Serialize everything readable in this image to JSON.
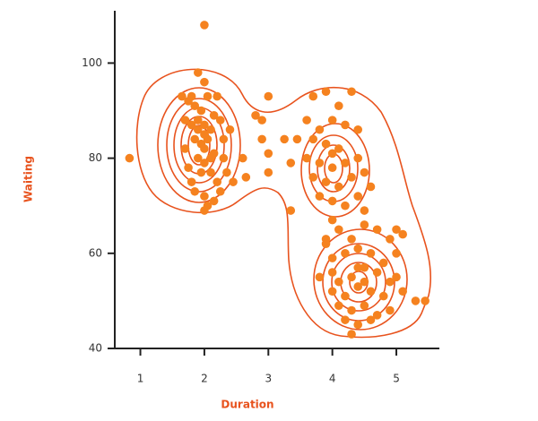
{
  "chart_data": {
    "type": "scatter",
    "x_label": "Duration",
    "y_label": "Waiting",
    "xlim": [
      0.6,
      5.7
    ],
    "ylim": [
      40,
      111
    ],
    "xticks": [
      1,
      2,
      3,
      4,
      5
    ],
    "yticks": [
      40,
      60,
      80,
      100
    ],
    "series": [
      {
        "color": "#f5821f",
        "x": [
          1.8,
          1.9,
          2.0,
          1.75,
          1.85,
          2.05,
          2.2,
          1.95,
          1.7,
          1.8,
          1.9,
          2.0,
          2.1,
          2.15,
          2.25,
          1.85,
          1.95,
          2.0,
          2.05,
          2.1,
          1.9,
          2.0,
          2.15,
          1.95,
          2.1,
          2.2,
          1.8,
          1.85,
          2.0,
          2.05,
          2.0,
          2.15,
          2.25,
          1.75,
          1.7,
          2.3,
          2.35,
          2.45,
          2.6,
          2.65,
          2.3,
          2.4,
          1.65,
          2.0,
          1.9,
          0.83,
          2.0,
          2.8,
          2.9,
          3.0,
          2.9,
          3.0,
          3.0,
          3.25,
          3.45,
          3.35,
          3.35,
          5.3,
          5.45,
          3.7,
          3.9,
          4.1,
          4.3,
          3.6,
          3.8,
          4.0,
          4.2,
          4.4,
          3.7,
          3.9,
          4.0,
          4.1,
          3.6,
          3.8,
          4.0,
          4.2,
          4.4,
          3.7,
          3.9,
          4.1,
          4.3,
          4.5,
          3.8,
          4.0,
          4.2,
          4.4,
          4.6,
          4.0,
          4.5,
          3.9,
          4.1,
          4.3,
          4.5,
          4.7,
          4.9,
          3.9,
          4.0,
          4.2,
          4.4,
          4.6,
          4.8,
          5.0,
          3.8,
          4.0,
          4.1,
          4.3,
          4.5,
          4.7,
          4.9,
          5.0,
          4.0,
          4.2,
          4.4,
          4.6,
          4.8,
          5.1,
          4.1,
          4.3,
          4.5,
          4.7,
          4.9,
          4.2,
          4.4,
          4.6,
          4.3,
          4.5,
          4.4,
          5.1,
          5.0
        ],
        "y": [
          93,
          98,
          96,
          92,
          91,
          93,
          93,
          90,
          88,
          87,
          88,
          87,
          86,
          89,
          88,
          84,
          83,
          82,
          84,
          80,
          80,
          79,
          81,
          77,
          77,
          75,
          75,
          73,
          72,
          70,
          69,
          71,
          73,
          78,
          82,
          80,
          77,
          75,
          80,
          76,
          84,
          86,
          93,
          85,
          86,
          80,
          108,
          89,
          88,
          93,
          84,
          81,
          77,
          84,
          84,
          79,
          69,
          50,
          50,
          93,
          94,
          91,
          94,
          88,
          86,
          88,
          87,
          86,
          84,
          83,
          81,
          82,
          80,
          79,
          78,
          79,
          80,
          76,
          75,
          74,
          76,
          77,
          72,
          71,
          70,
          72,
          74,
          67,
          69,
          63,
          65,
          63,
          66,
          65,
          63,
          62,
          59,
          60,
          61,
          60,
          58,
          60,
          55,
          56,
          54,
          55,
          57,
          56,
          54,
          55,
          52,
          51,
          53,
          52,
          51,
          52,
          49,
          48,
          49,
          47,
          48,
          46,
          45,
          46,
          43,
          54,
          57,
          64,
          65
        ]
      }
    ]
  }
}
